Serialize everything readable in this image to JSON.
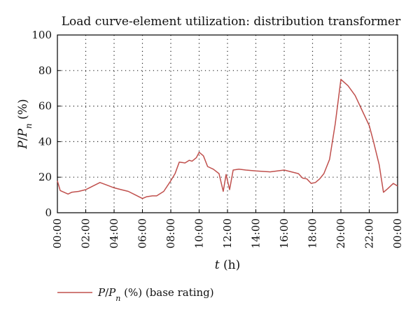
{
  "chart_data": {
    "type": "line",
    "title": "Load curve-element utilization: distribution transformer",
    "xlabel": "t (h)",
    "ylabel": "P/Pn (%)",
    "xlim": [
      0,
      24
    ],
    "ylim": [
      0,
      100
    ],
    "x_ticks": [
      0,
      2,
      4,
      6,
      8,
      10,
      12,
      14,
      16,
      18,
      20,
      22,
      24
    ],
    "x_tick_labels": [
      "00:00",
      "02:00",
      "04:00",
      "06:00",
      "08:00",
      "10:00",
      "12:00",
      "14:00",
      "16:00",
      "18:00",
      "20:00",
      "22:00",
      "00:00"
    ],
    "y_ticks": [
      0,
      20,
      40,
      60,
      80,
      100
    ],
    "grid": "dotted",
    "legend_position": "bottom-left",
    "color": "#c0504d",
    "series": [
      {
        "name": "P/Pn (%) (base rating)",
        "x": [
          0,
          0.2,
          0.75,
          1,
          1.5,
          2,
          2.5,
          3,
          3.5,
          4,
          4.5,
          5,
          5.5,
          6,
          6.3,
          6.7,
          7,
          7.5,
          8,
          8.3,
          8.6,
          9,
          9.3,
          9.5,
          9.8,
          10,
          10.3,
          10.6,
          11,
          11.4,
          11.7,
          11.9,
          12.15,
          12.4,
          12.8,
          13.3,
          14,
          15,
          16,
          17,
          17.3,
          17.6,
          17.9,
          18.2,
          18.5,
          18.8,
          19.2,
          19.6,
          20,
          20.5,
          21,
          21.5,
          22,
          22.3,
          22.7,
          23,
          23.3,
          23.7,
          24
        ],
        "y": [
          18,
          12.5,
          10.5,
          11.5,
          12,
          13,
          15,
          17,
          15.5,
          14,
          13,
          12,
          10,
          8,
          9,
          9.5,
          9.5,
          12,
          18,
          22,
          28.5,
          28,
          29.5,
          29,
          31,
          34,
          32,
          26,
          24.5,
          22,
          12,
          21.5,
          13,
          24,
          24.5,
          24,
          23.5,
          23,
          24,
          22,
          19.5,
          19,
          16.5,
          17,
          19,
          22,
          30,
          50,
          75,
          71.5,
          66,
          57.5,
          49,
          40,
          27,
          11.5,
          13.5,
          16.5,
          15
        ]
      }
    ]
  }
}
